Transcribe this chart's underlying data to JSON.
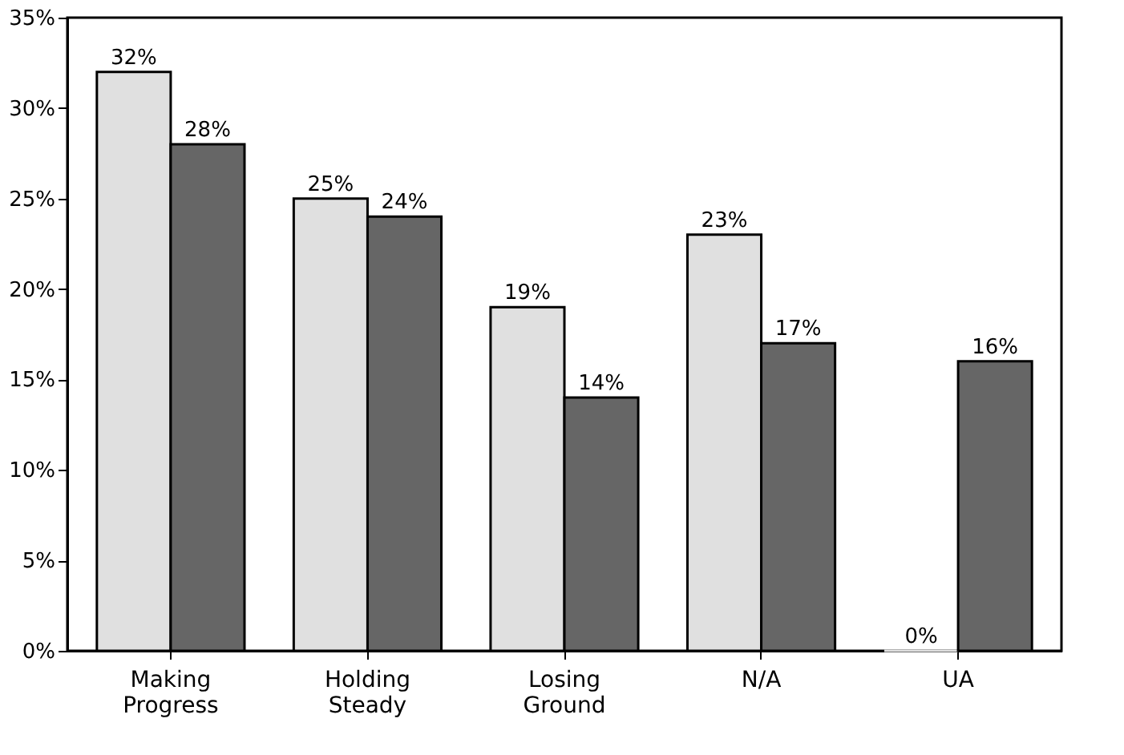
{
  "chart_data": {
    "type": "bar",
    "categories": [
      "Making Progress",
      "Holding Steady",
      "Losing Ground",
      "N/A",
      "UA"
    ],
    "series": [
      {
        "color": "#e0e0e0",
        "values": [
          32,
          25,
          19,
          23,
          0
        ],
        "value_labels": [
          "32%",
          "25%",
          "19%",
          "23%",
          "0%"
        ]
      },
      {
        "color": "#666666",
        "values": [
          28,
          24,
          14,
          17,
          16
        ],
        "value_labels": [
          "28%",
          "24%",
          "14%",
          "17%",
          "16%"
        ]
      }
    ],
    "ylim": [
      0,
      35
    ],
    "yticks": [
      {
        "value": 0,
        "label": "0%"
      },
      {
        "value": 5,
        "label": "5%"
      },
      {
        "value": 10,
        "label": "10%"
      },
      {
        "value": 15,
        "label": "15%"
      },
      {
        "value": 20,
        "label": "20%"
      },
      {
        "value": 25,
        "label": "25%"
      },
      {
        "value": 30,
        "label": "30%"
      },
      {
        "value": 35,
        "label": "35%"
      }
    ],
    "grid": false,
    "legend": false
  }
}
